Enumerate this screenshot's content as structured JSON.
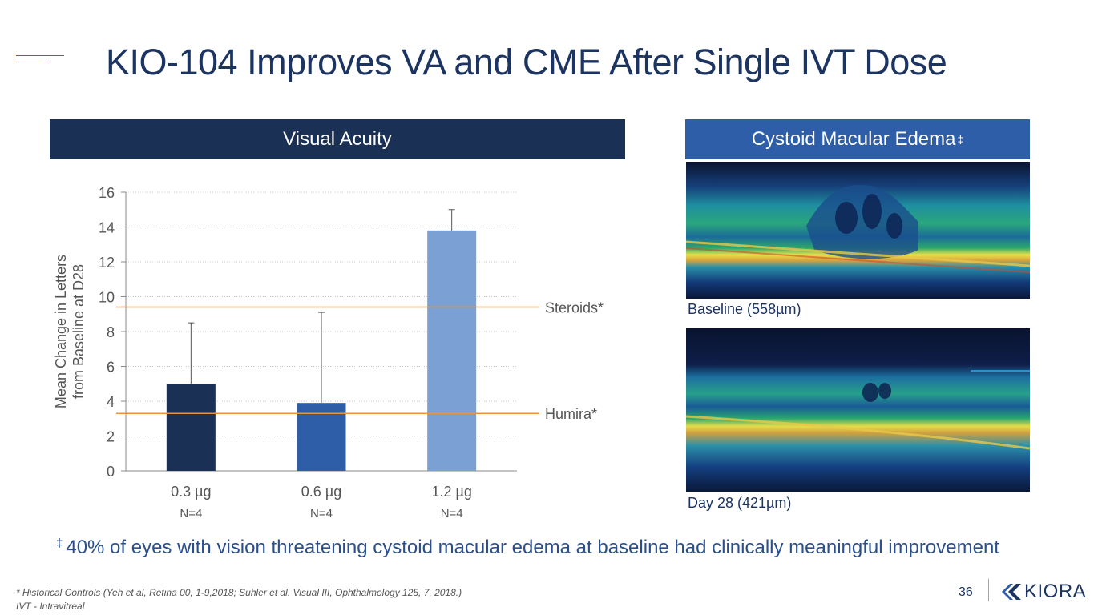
{
  "title": "KIO-104 Improves VA and CME After Single IVT Dose",
  "va_panel": {
    "header": "Visual Acuity"
  },
  "cme_panel": {
    "header": "Cystoid Macular Edema",
    "header_mark": "‡",
    "baseline_caption": "Baseline (558µm)",
    "day28_caption": "Day 28 (421µm)"
  },
  "colors": {
    "navy": "#1b3055",
    "blue": "#2f5ea8",
    "light_blue": "#7ba1d4",
    "reference_line": "#e8943a"
  },
  "chart_data": {
    "type": "bar",
    "categories": [
      "0.3 µg",
      "0.6 µg",
      "1.2 µg"
    ],
    "sublabels": [
      "N=4",
      "N=4",
      "N=4"
    ],
    "values": [
      5.0,
      3.9,
      13.8
    ],
    "error_upper": [
      8.5,
      9.1,
      15.0
    ],
    "ylabel_line1": "Mean Change in Letters",
    "ylabel_line2": "from Baseline at D28",
    "ylim": [
      0,
      16
    ],
    "yticks": [
      0,
      2,
      4,
      6,
      8,
      10,
      12,
      14,
      16
    ],
    "grid": true,
    "reference_lines": [
      {
        "label": "Steroids*",
        "value": 9.4
      },
      {
        "label": "Humira*",
        "value": 3.3
      }
    ]
  },
  "footnote_main": {
    "mark": "‡",
    "text": "40% of eyes with vision threatening cystoid macular edema at baseline had clinically meaningful improvement"
  },
  "footnote_refs": "* Historical Controls (Yeh et al, Retina 00, 1-9,2018; Suhler et al. Visual III, Ophthalmology 125, 7, 2018.)",
  "footnote_ivt": "IVT - Intravitreal",
  "page_number": "36",
  "logo": {
    "text": "KIORA",
    "icon": "kiora-k-mark-icon"
  }
}
